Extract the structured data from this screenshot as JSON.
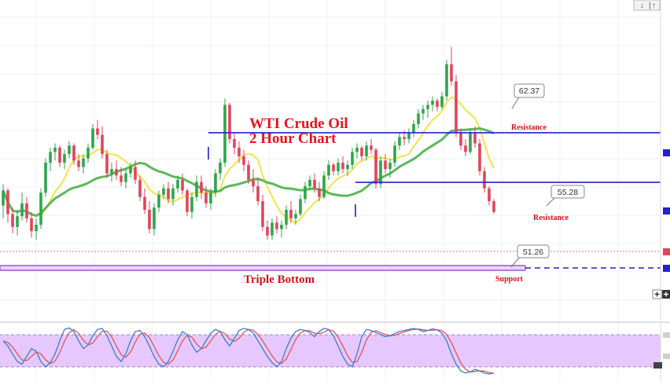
{
  "chart": {
    "title_line1": "WTI Crude Oil",
    "title_line2": "2 Hour Chart",
    "title_color": "#e8141b"
  },
  "annotations": {
    "callout_high": "62.37",
    "callout_mid": "55.28",
    "callout_low": "51.26",
    "resistance_upper": "Resistance",
    "resistance_lower": "Resistance",
    "support": "Support",
    "pattern": "Triple Bottom"
  },
  "toolbar": {
    "updown_icon": "sort-arrows-icon",
    "crosshair_icon": "plus-icon"
  },
  "colors": {
    "bull": "#2ea64a",
    "bear": "#e0455a",
    "sma_fast": "#f3e34a",
    "sma_slow": "#5cb85c",
    "resistance_line": "#2222cc",
    "support_line": "#9b59d0",
    "stoch_k": "#3b7bd4",
    "stoch_d": "#e0555a",
    "stoch_band": "#e6c8ff"
  },
  "chart_data": {
    "type": "candlestick",
    "title": "WTI Crude Oil 2 Hour Chart",
    "levels": {
      "resistance_upper": 57.6,
      "resistance_lower": 55.28,
      "support": 51.26,
      "high_callout": 62.37,
      "last_price": 53.9
    },
    "ohlc": [
      [
        54.2,
        55.2,
        53.6,
        54.9
      ],
      [
        54.9,
        55.0,
        53.4,
        53.8
      ],
      [
        53.8,
        54.1,
        52.9,
        53.2
      ],
      [
        53.2,
        54.0,
        52.8,
        53.7
      ],
      [
        53.7,
        54.8,
        53.5,
        54.3
      ],
      [
        54.3,
        54.6,
        53.4,
        53.6
      ],
      [
        53.6,
        53.9,
        52.7,
        53.0
      ],
      [
        53.0,
        53.6,
        52.6,
        53.3
      ],
      [
        53.3,
        55.0,
        53.1,
        54.8
      ],
      [
        54.8,
        56.4,
        54.6,
        56.2
      ],
      [
        56.2,
        56.9,
        55.8,
        56.7
      ],
      [
        56.7,
        57.1,
        56.3,
        56.9
      ],
      [
        56.9,
        57.0,
        56.0,
        56.2
      ],
      [
        56.2,
        56.8,
        55.9,
        56.6
      ],
      [
        56.6,
        57.2,
        56.4,
        57.0
      ],
      [
        57.0,
        57.1,
        56.1,
        56.3
      ],
      [
        56.3,
        56.6,
        55.8,
        56.0
      ],
      [
        56.0,
        56.6,
        55.7,
        56.4
      ],
      [
        56.4,
        57.1,
        56.2,
        56.9
      ],
      [
        56.9,
        58.0,
        56.8,
        57.8
      ],
      [
        57.8,
        58.2,
        57.3,
        57.5
      ],
      [
        57.5,
        57.9,
        56.4,
        56.6
      ],
      [
        56.6,
        56.8,
        55.5,
        55.7
      ],
      [
        55.7,
        56.2,
        55.3,
        55.9
      ],
      [
        55.9,
        56.3,
        55.4,
        55.6
      ],
      [
        55.6,
        56.0,
        55.1,
        55.3
      ],
      [
        55.3,
        55.9,
        55.0,
        55.7
      ],
      [
        55.7,
        56.2,
        55.5,
        56.0
      ],
      [
        56.0,
        56.3,
        55.2,
        55.4
      ],
      [
        55.4,
        55.6,
        54.4,
        54.6
      ],
      [
        54.6,
        55.0,
        53.8,
        54.0
      ],
      [
        54.0,
        54.4,
        52.9,
        53.1
      ],
      [
        53.1,
        54.3,
        52.8,
        54.1
      ],
      [
        54.1,
        54.9,
        53.9,
        54.7
      ],
      [
        54.7,
        55.2,
        54.5,
        55.0
      ],
      [
        55.0,
        55.3,
        54.3,
        54.5
      ],
      [
        54.5,
        55.2,
        54.2,
        55.0
      ],
      [
        55.0,
        55.6,
        54.8,
        55.4
      ],
      [
        55.4,
        55.7,
        54.7,
        54.9
      ],
      [
        54.9,
        55.0,
        53.7,
        53.9
      ],
      [
        53.9,
        54.8,
        53.6,
        54.6
      ],
      [
        54.6,
        55.6,
        54.4,
        55.3
      ],
      [
        55.3,
        55.6,
        54.5,
        54.8
      ],
      [
        54.8,
        55.1,
        54.1,
        54.3
      ],
      [
        54.3,
        55.0,
        54.0,
        54.8
      ],
      [
        54.8,
        55.9,
        54.6,
        55.7
      ],
      [
        55.7,
        56.4,
        55.4,
        56.2
      ],
      [
        56.2,
        59.2,
        56.0,
        58.9
      ],
      [
        58.9,
        59.0,
        57.1,
        57.3
      ],
      [
        57.3,
        57.6,
        56.6,
        56.9
      ],
      [
        56.9,
        57.2,
        56.2,
        56.5
      ],
      [
        56.5,
        56.8,
        55.8,
        56.1
      ],
      [
        56.1,
        56.3,
        55.2,
        55.4
      ],
      [
        55.4,
        55.9,
        54.8,
        55.1
      ],
      [
        55.1,
        55.5,
        54.2,
        54.4
      ],
      [
        54.4,
        54.7,
        53.0,
        53.2
      ],
      [
        53.2,
        53.5,
        52.6,
        52.8
      ],
      [
        52.8,
        53.6,
        52.6,
        53.4
      ],
      [
        53.4,
        53.7,
        52.9,
        53.1
      ],
      [
        53.1,
        53.5,
        52.7,
        53.3
      ],
      [
        53.3,
        54.2,
        53.1,
        54.0
      ],
      [
        54.0,
        54.4,
        53.4,
        53.6
      ],
      [
        53.6,
        54.0,
        53.3,
        53.8
      ],
      [
        53.8,
        54.7,
        53.7,
        54.5
      ],
      [
        54.5,
        55.3,
        54.3,
        55.1
      ],
      [
        55.1,
        55.6,
        54.9,
        55.4
      ],
      [
        55.4,
        55.7,
        54.8,
        55.0
      ],
      [
        55.0,
        55.3,
        54.4,
        54.6
      ],
      [
        54.6,
        55.8,
        54.5,
        55.6
      ],
      [
        55.6,
        56.3,
        55.4,
        56.1
      ],
      [
        56.1,
        56.2,
        55.6,
        55.8
      ],
      [
        55.8,
        56.4,
        55.6,
        56.2
      ],
      [
        56.2,
        56.5,
        55.7,
        55.9
      ],
      [
        55.9,
        56.3,
        55.6,
        56.1
      ],
      [
        56.1,
        56.9,
        55.9,
        56.7
      ],
      [
        56.7,
        57.1,
        56.4,
        56.9
      ],
      [
        56.9,
        57.0,
        56.3,
        56.5
      ],
      [
        56.5,
        57.2,
        56.3,
        57.0
      ],
      [
        57.0,
        57.3,
        56.6,
        56.8
      ],
      [
        56.8,
        56.9,
        55.0,
        55.2
      ],
      [
        55.2,
        56.5,
        55.0,
        56.3
      ],
      [
        56.3,
        56.6,
        55.7,
        55.9
      ],
      [
        55.9,
        56.4,
        55.5,
        56.2
      ],
      [
        56.2,
        57.2,
        56.0,
        57.0
      ],
      [
        57.0,
        57.6,
        56.8,
        57.4
      ],
      [
        57.4,
        57.7,
        57.0,
        57.3
      ],
      [
        57.3,
        57.8,
        57.1,
        57.6
      ],
      [
        57.6,
        58.2,
        57.4,
        58.0
      ],
      [
        58.0,
        58.7,
        57.8,
        58.5
      ],
      [
        58.5,
        58.9,
        58.2,
        58.7
      ],
      [
        58.7,
        59.1,
        58.3,
        58.9
      ],
      [
        58.9,
        59.3,
        58.6,
        59.1
      ],
      [
        59.1,
        59.2,
        58.6,
        58.8
      ],
      [
        58.8,
        59.5,
        58.7,
        59.3
      ],
      [
        59.3,
        61.0,
        59.1,
        60.8
      ],
      [
        60.8,
        61.6,
        59.8,
        60.0
      ],
      [
        60.0,
        60.3,
        57.4,
        57.6
      ],
      [
        57.6,
        57.8,
        56.8,
        57.0
      ],
      [
        57.0,
        57.3,
        56.5,
        56.7
      ],
      [
        56.7,
        57.8,
        56.6,
        57.6
      ],
      [
        57.6,
        57.9,
        56.9,
        57.1
      ],
      [
        57.1,
        57.3,
        55.6,
        55.8
      ],
      [
        55.8,
        56.0,
        54.8,
        55.0
      ],
      [
        55.0,
        55.1,
        54.2,
        54.4
      ],
      [
        54.4,
        54.5,
        53.8,
        53.9
      ]
    ],
    "stochastic": {
      "upper": 80,
      "lower": 20,
      "k": [
        70,
        60,
        45,
        30,
        25,
        40,
        55,
        50,
        30,
        20,
        28,
        45,
        70,
        92,
        95,
        88,
        70,
        55,
        62,
        80,
        92,
        94,
        80,
        60,
        40,
        30,
        45,
        70,
        88,
        90,
        78,
        60,
        40,
        25,
        20,
        30,
        50,
        72,
        88,
        82,
        62,
        48,
        55,
        70,
        85,
        92,
        88,
        72,
        60,
        75,
        90,
        94,
        92,
        85,
        70,
        55,
        40,
        28,
        20,
        30,
        55,
        75,
        88,
        92,
        90,
        86,
        78,
        88,
        94,
        92,
        80,
        60,
        40,
        25,
        20,
        45,
        78,
        92,
        90,
        86,
        82,
        78,
        80,
        84,
        88,
        90,
        92,
        94,
        92,
        88,
        90,
        93,
        91,
        85,
        70,
        45,
        25,
        12,
        8,
        10,
        15,
        12,
        8,
        6,
        8
      ]
    }
  }
}
